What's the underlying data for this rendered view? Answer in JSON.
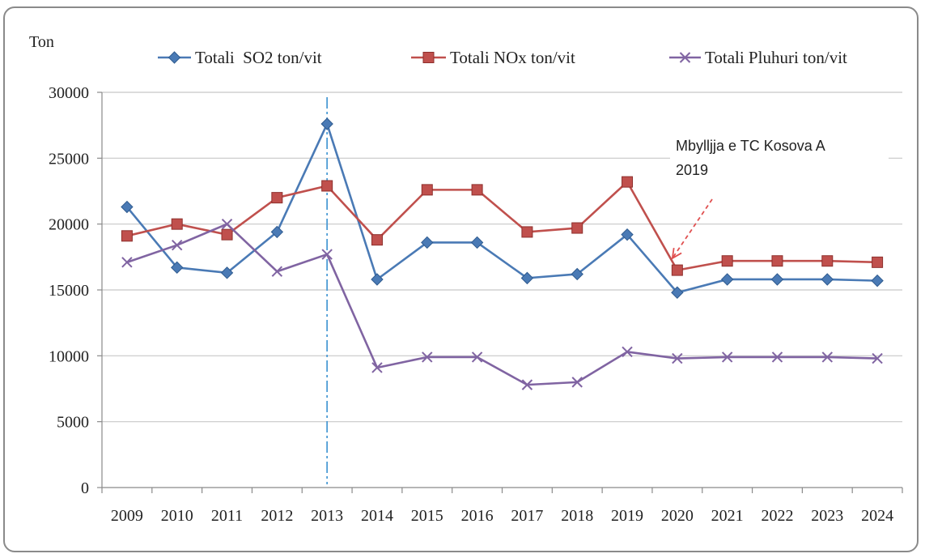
{
  "chart_data": {
    "type": "line",
    "ylabel": "Ton",
    "xlabel": "",
    "ylim": [
      0,
      30000
    ],
    "yticks": [
      0,
      5000,
      10000,
      15000,
      20000,
      25000,
      30000
    ],
    "categories": [
      "2009",
      "2010",
      "2011",
      "2012",
      "2013",
      "2014",
      "2015",
      "2016",
      "2017",
      "2018",
      "2019",
      "2020",
      "2021",
      "2022",
      "2023",
      "2024"
    ],
    "legend_position": "top",
    "grid": true,
    "series": [
      {
        "name": "Totali  SO2 ton/vit",
        "color": "#4a7ab5",
        "marker": "diamond",
        "values": [
          21300,
          16700,
          16300,
          19400,
          27600,
          15800,
          18600,
          18600,
          15900,
          16200,
          19200,
          14800,
          15800,
          15800,
          15800,
          15700
        ]
      },
      {
        "name": "Totali NOx ton/vit",
        "color": "#c0504d",
        "marker": "square",
        "values": [
          19100,
          20000,
          19200,
          22000,
          22900,
          18800,
          22600,
          22600,
          19400,
          19700,
          23200,
          16500,
          17200,
          17200,
          17200,
          17100
        ]
      },
      {
        "name": "Totali Pluhuri ton/vit",
        "color": "#8064a2",
        "marker": "x",
        "values": [
          17100,
          18400,
          20000,
          16400,
          17700,
          9100,
          9900,
          9900,
          7800,
          8000,
          10300,
          9800,
          9900,
          9900,
          9900,
          9800
        ]
      }
    ],
    "reference_line": {
      "category": "2013",
      "color": "#4a9ad4"
    },
    "annotation": {
      "lines": [
        "Mbylljja e TC Kosova A",
        "2019"
      ],
      "arrow_to_category": "2020",
      "arrow_color": "#e05050"
    }
  }
}
